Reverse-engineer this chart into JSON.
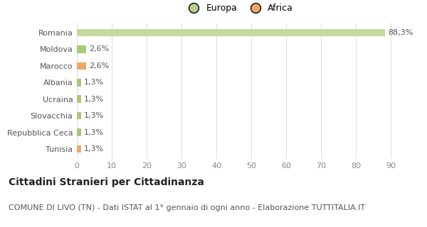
{
  "categories": [
    "Tunisia",
    "Repubblica Ceca",
    "Slovacchia",
    "Ucraina",
    "Albania",
    "Marocco",
    "Moldova",
    "Romania"
  ],
  "values": [
    1.3,
    1.3,
    1.3,
    1.3,
    1.3,
    2.6,
    2.6,
    88.3
  ],
  "labels": [
    "1,3%",
    "1,3%",
    "1,3%",
    "1,3%",
    "1,3%",
    "2,6%",
    "2,6%",
    "88,3%"
  ],
  "colors": [
    "#f0a868",
    "#a8c87a",
    "#a8c87a",
    "#a8c87a",
    "#a8c87a",
    "#f0a868",
    "#a8c87a",
    "#c5d9a0"
  ],
  "legend": [
    {
      "label": "Europa",
      "color": "#b5cc8e"
    },
    {
      "label": "Africa",
      "color": "#f0a868"
    }
  ],
  "xlim": [
    0,
    93
  ],
  "xticks": [
    0,
    10,
    20,
    30,
    40,
    50,
    60,
    70,
    80,
    90
  ],
  "title": "Cittadini Stranieri per Cittadinanza",
  "subtitle": "COMUNE DI LIVO (TN) - Dati ISTAT al 1° gennaio di ogni anno - Elaborazione TUTTITALIA.IT",
  "bg_color": "#ffffff",
  "bar_height": 0.45,
  "title_fontsize": 10,
  "subtitle_fontsize": 8,
  "tick_fontsize": 8,
  "label_fontsize": 8,
  "legend_fontsize": 9
}
